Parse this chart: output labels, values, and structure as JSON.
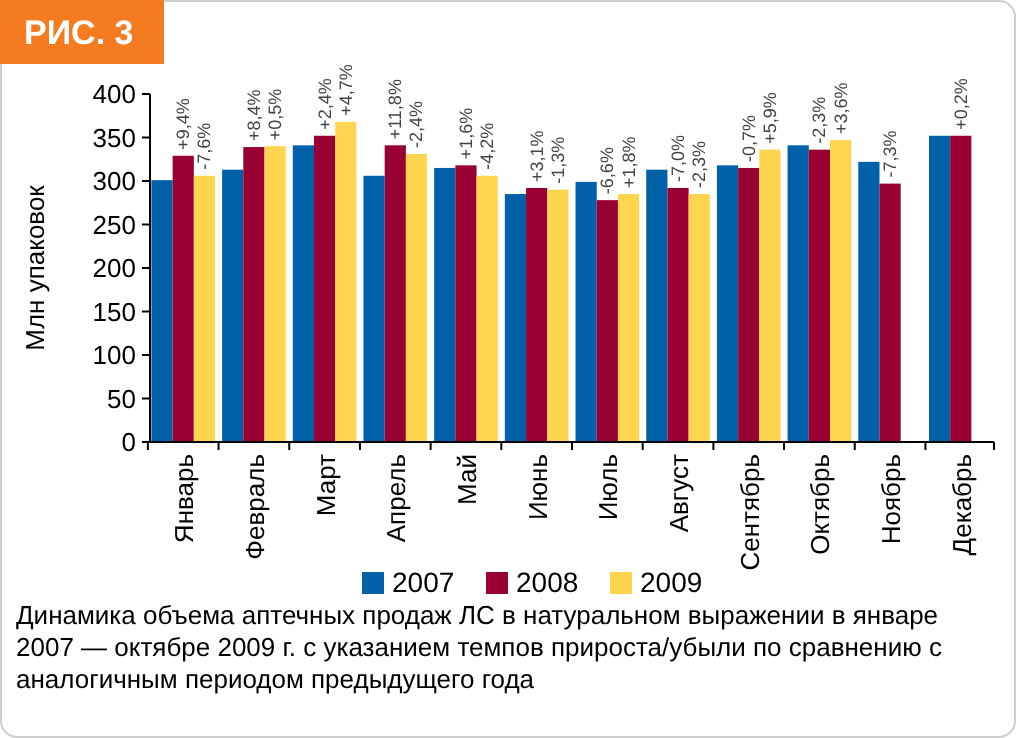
{
  "chart_data": {
    "type": "bar",
    "title": "РИС. 3",
    "ylabel": "Млн упаковок",
    "annotations": [
      "Динамика объема аптечных продаж ЛС в натуральном выражении в январе 2007 — октябре 2009 г. с указанием темпов прироста/убыли по сравнению с аналогичным периодом предыдущего года",
      {
        "text": "+9,4%",
        "x": "Январь",
        "y": 329
      },
      {
        "text": "-7,6%",
        "x": "Январь",
        "y": 306
      },
      {
        "text": "+8,4%",
        "x": "Февраль",
        "y": 339
      },
      {
        "text": "+0,5%",
        "x": "Февраль",
        "y": 340
      },
      {
        "text": "+2,4%",
        "x": "Март",
        "y": 352
      },
      {
        "text": "+4,7%",
        "x": "Март",
        "y": 368
      },
      {
        "text": "+11,8%",
        "x": "Апрель",
        "y": 341
      },
      {
        "text": "-2,4%",
        "x": "Апрель",
        "y": 331
      },
      {
        "text": "+1,6%",
        "x": "Май",
        "y": 318
      },
      {
        "text": "-4,2%",
        "x": "Май",
        "y": 306
      },
      {
        "text": "+3,1%",
        "x": "Июнь",
        "y": 292
      },
      {
        "text": "-1,3%",
        "x": "Июнь",
        "y": 290
      },
      {
        "text": "-6,6%",
        "x": "Июль",
        "y": 278
      },
      {
        "text": "+1,8%",
        "x": "Июль",
        "y": 285
      },
      {
        "text": "-7,0%",
        "x": "Август",
        "y": 292
      },
      {
        "text": "-2,3%",
        "x": "Август",
        "y": 285
      },
      {
        "text": "-0,7%",
        "x": "Сентябрь",
        "y": 315
      },
      {
        "text": "+5,9%",
        "x": "Сентябрь",
        "y": 336
      },
      {
        "text": "-2,3%",
        "x": "Октябрь",
        "y": 336
      },
      {
        "text": "+3,6%",
        "x": "Октябрь",
        "y": 347
      },
      {
        "text": "-7,3%",
        "x": "Ноябрь",
        "y": 297
      },
      {
        "text": "+0,2%",
        "x": "Декабрь",
        "y": 352
      }
    ],
    "categories": [
      "Январь",
      "Февраль",
      "Март",
      "Апрель",
      "Май",
      "Июнь",
      "Июль",
      "Август",
      "Сентябрь",
      "Октябрь",
      "Ноябрь",
      "Декабрь"
    ],
    "series": [
      {
        "name": "2007",
        "color": "#0060a8",
        "values": [
          301,
          313,
          341,
          306,
          315,
          285,
          299,
          313,
          318,
          341,
          322,
          352
        ]
      },
      {
        "name": "2008",
        "color": "#990033",
        "values": [
          329,
          339,
          352,
          341,
          318,
          292,
          278,
          292,
          315,
          336,
          297,
          352
        ]
      },
      {
        "name": "2009",
        "color": "#ffd54f",
        "values": [
          306,
          340,
          368,
          331,
          306,
          290,
          285,
          285,
          336,
          347,
          null,
          null
        ]
      }
    ],
    "ylim": [
      0,
      400
    ],
    "yticks": [
      0,
      50,
      100,
      150,
      200,
      250,
      300,
      350,
      400
    ],
    "grid": false,
    "legend": "bottom"
  }
}
